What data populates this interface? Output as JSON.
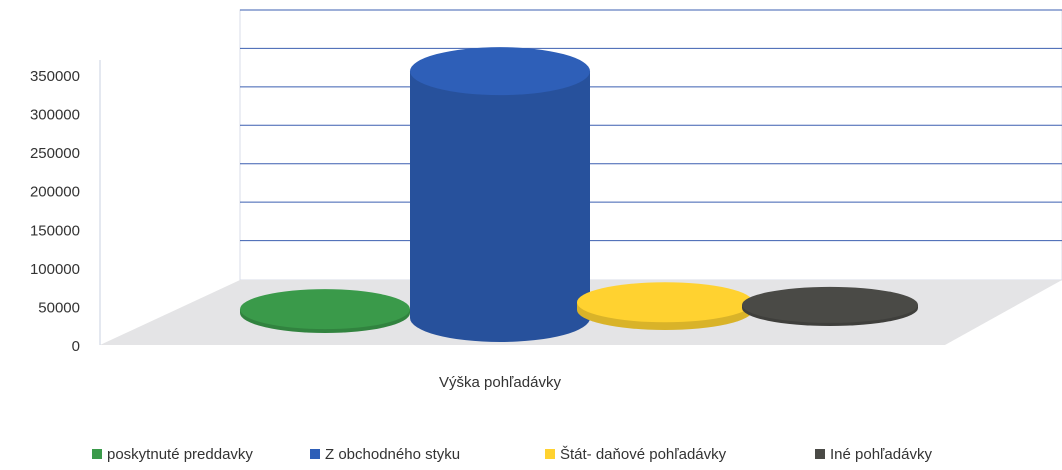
{
  "chart_data": {
    "type": "cylinder",
    "categories": [
      "Výška pohľadávky"
    ],
    "series": [
      {
        "name": "poskytnuté preddavky",
        "color": "#3a9a4a",
        "values": [
          5000
        ]
      },
      {
        "name": "Z obchodného styku",
        "color": "#2e5fb8",
        "values": [
          320000
        ]
      },
      {
        "name": "Štát- daňové pohľadávky",
        "color": "#ffd230",
        "values": [
          10000
        ]
      },
      {
        "name": "Iné pohľadávky",
        "color": "#4a4a46",
        "values": [
          4000
        ]
      }
    ],
    "ylim": [
      0,
      350000
    ],
    "yticks": [
      0,
      50000,
      100000,
      150000,
      200000,
      250000,
      300000,
      350000
    ],
    "grid": true,
    "legend": "bottom"
  }
}
